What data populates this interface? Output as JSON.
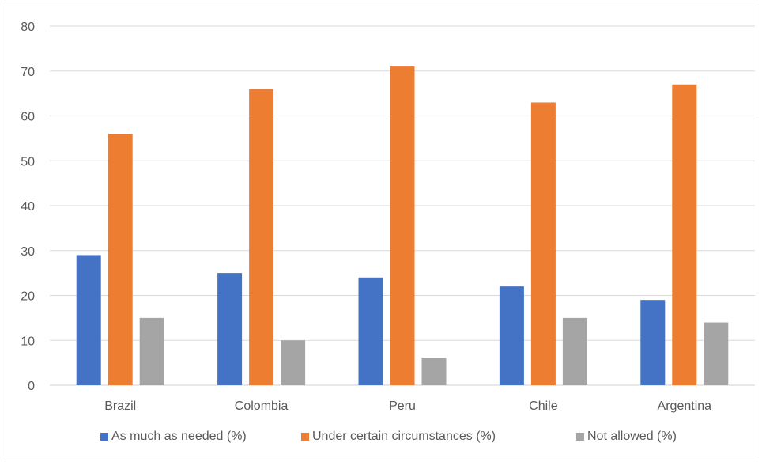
{
  "chart_data": {
    "type": "bar",
    "title": "",
    "xlabel": "",
    "ylabel": "",
    "categories": [
      "Brazil",
      "Colombia",
      "Peru",
      "Chile",
      "Argentina"
    ],
    "series": [
      {
        "name": "As much as needed (%)",
        "color": "#4472c4",
        "values": [
          29,
          25,
          24,
          22,
          19
        ]
      },
      {
        "name": "Under certain circumstances (%)",
        "color": "#ed7d31",
        "values": [
          56,
          66,
          71,
          63,
          67
        ]
      },
      {
        "name": "Not allowed (%)",
        "color": "#a5a5a5",
        "values": [
          15,
          10,
          6,
          15,
          14
        ]
      }
    ],
    "ylim": [
      0,
      80
    ],
    "yticks": [
      0,
      10,
      20,
      30,
      40,
      50,
      60,
      70,
      80
    ],
    "grid": true,
    "legend_position": "bottom"
  }
}
